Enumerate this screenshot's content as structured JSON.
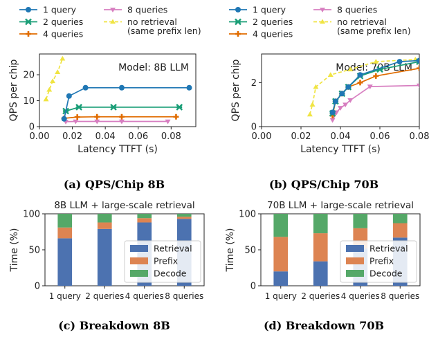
{
  "legend_top": [
    {
      "label": "1 query",
      "color": "#1f77b4",
      "marker": "circle"
    },
    {
      "label": "2 queries",
      "color": "#1a9e77",
      "marker": "x"
    },
    {
      "label": "4 queries",
      "color": "#e06c00",
      "marker": "plus"
    },
    {
      "label": "8 queries",
      "color": "#d77ec0",
      "marker": "tri"
    },
    {
      "label": "no retrieval",
      "label2": "(same prefix len)",
      "color": "#f0e442",
      "marker": "tri-up"
    }
  ],
  "captions": {
    "a": "(a) QPS/Chip 8B",
    "b": "(b) QPS/Chip 70B",
    "c": "(c) Breakdown 8B",
    "d": "(d) Breakdown 70B"
  },
  "chart_data": [
    {
      "id": "a",
      "type": "line",
      "annotation": "Model: 8B LLM",
      "xlabel": "Latency TTFT (s)",
      "ylabel": "QPS per chip",
      "xlim": [
        0,
        0.095
      ],
      "ylim": [
        0,
        28
      ],
      "xticks": [
        "0.00",
        "0.02",
        "0.04",
        "0.06",
        "0.08"
      ],
      "xtickvals": [
        0,
        0.02,
        0.04,
        0.06,
        0.08
      ],
      "yticks": [
        "0",
        "10",
        "20"
      ],
      "ytickvals": [
        0,
        10,
        20
      ],
      "series": [
        {
          "name": "no retrieval",
          "x": [
            0.004,
            0.006,
            0.008,
            0.011,
            0.014
          ],
          "y": [
            10.5,
            14.2,
            17.5,
            21,
            26.2
          ]
        },
        {
          "name": "8 queries",
          "x": [
            0.016,
            0.022,
            0.035,
            0.05,
            0.078
          ],
          "y": [
            1.9,
            2.0,
            2.0,
            2.0,
            2.0
          ]
        },
        {
          "name": "4 queries",
          "x": [
            0.015,
            0.023,
            0.035,
            0.05,
            0.083
          ],
          "y": [
            3.2,
            3.7,
            3.8,
            3.8,
            3.8
          ]
        },
        {
          "name": "2 queries",
          "x": [
            0.016,
            0.024,
            0.045,
            0.085
          ],
          "y": [
            6.0,
            7.5,
            7.5,
            7.5
          ]
        },
        {
          "name": "1 query",
          "x": [
            0.015,
            0.018,
            0.028,
            0.05,
            0.091
          ],
          "y": [
            3.0,
            11.8,
            15,
            15,
            15
          ]
        }
      ]
    },
    {
      "id": "b",
      "type": "line",
      "annotation": "Model: 70B LLM",
      "xlabel": "Latency TTFT (s)",
      "ylabel": "QPS per chip",
      "xlim": [
        0,
        0.08
      ],
      "ylim": [
        0,
        3.3
      ],
      "xticks": [
        "0.00",
        "0.02",
        "0.04",
        "0.06",
        "0.08"
      ],
      "xtickvals": [
        0,
        0.02,
        0.04,
        0.06,
        0.08
      ],
      "yticks": [
        "0",
        "2"
      ],
      "ytickvals": [
        0,
        2
      ],
      "series": [
        {
          "name": "no retrieval",
          "x": [
            0.0245,
            0.0258,
            0.0275,
            0.035,
            0.045,
            0.058,
            0.078
          ],
          "y": [
            0.55,
            1.0,
            1.8,
            2.35,
            2.6,
            2.95,
            3.05
          ]
        },
        {
          "name": "8 queries",
          "x": [
            0.036,
            0.038,
            0.04,
            0.0425,
            0.045,
            0.055,
            0.08
          ],
          "y": [
            0.3,
            0.65,
            0.85,
            1.0,
            1.2,
            1.82,
            1.87
          ]
        },
        {
          "name": "4 queries",
          "x": [
            0.036,
            0.0375,
            0.0408,
            0.044,
            0.05,
            0.058,
            0.08
          ],
          "y": [
            0.5,
            1.15,
            1.5,
            1.8,
            2.0,
            2.3,
            2.65
          ]
        },
        {
          "name": "2 queries",
          "x": [
            0.036,
            0.0375,
            0.0408,
            0.044,
            0.05,
            0.06,
            0.08
          ],
          "y": [
            0.6,
            1.15,
            1.5,
            1.8,
            2.3,
            2.6,
            2.95
          ]
        },
        {
          "name": "1 query",
          "x": [
            0.036,
            0.0375,
            0.0408,
            0.044,
            0.05,
            0.07,
            0.08
          ],
          "y": [
            0.65,
            1.15,
            1.5,
            1.8,
            2.35,
            2.95,
            3.0
          ]
        }
      ]
    },
    {
      "id": "c",
      "type": "bar",
      "title": "8B LLM + large-scale retrieval",
      "ylabel": "Time (%)",
      "ylim": [
        0,
        100
      ],
      "yticks": [
        "0",
        "50",
        "100"
      ],
      "ytickvals": [
        0,
        50,
        100
      ],
      "categories": [
        "1 query",
        "2 queries",
        "4 queries",
        "8 queries"
      ],
      "legend_position": "lower-right",
      "series": [
        {
          "name": "Retrieval",
          "color": "#4c72b0",
          "values": [
            66,
            79,
            88,
            93
          ]
        },
        {
          "name": "Prefix",
          "color": "#dd8452",
          "values": [
            15,
            9,
            6,
            3
          ]
        },
        {
          "name": "Decode",
          "color": "#55a868",
          "values": [
            19,
            12,
            6,
            4
          ]
        }
      ]
    },
    {
      "id": "d",
      "type": "bar",
      "title": "70B LLM + large-scale retrieval",
      "ylabel": "Time (%)",
      "ylim": [
        0,
        100
      ],
      "yticks": [
        "0",
        "50",
        "100"
      ],
      "ytickvals": [
        0,
        50,
        100
      ],
      "categories": [
        "1 query",
        "2 queries",
        "4 queries",
        "8 queries"
      ],
      "legend_position": "lower-right",
      "series": [
        {
          "name": "Retrieval",
          "color": "#4c72b0",
          "values": [
            20,
            34,
            52,
            67
          ]
        },
        {
          "name": "Prefix",
          "color": "#dd8452",
          "values": [
            48,
            39,
            28,
            20
          ]
        },
        {
          "name": "Decode",
          "color": "#55a868",
          "values": [
            32,
            27,
            20,
            13
          ]
        }
      ]
    }
  ]
}
